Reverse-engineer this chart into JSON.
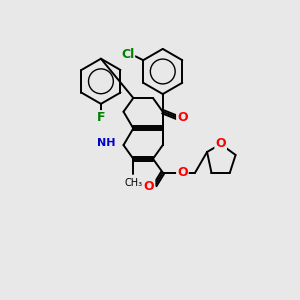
{
  "background_color": "#e8e8e8",
  "bond_color": "#000000",
  "atom_colors": {
    "O": "#ff0000",
    "N": "#0000cd",
    "Cl": "#008000",
    "F": "#008000"
  },
  "figsize": [
    3.0,
    3.0
  ],
  "dpi": 100
}
